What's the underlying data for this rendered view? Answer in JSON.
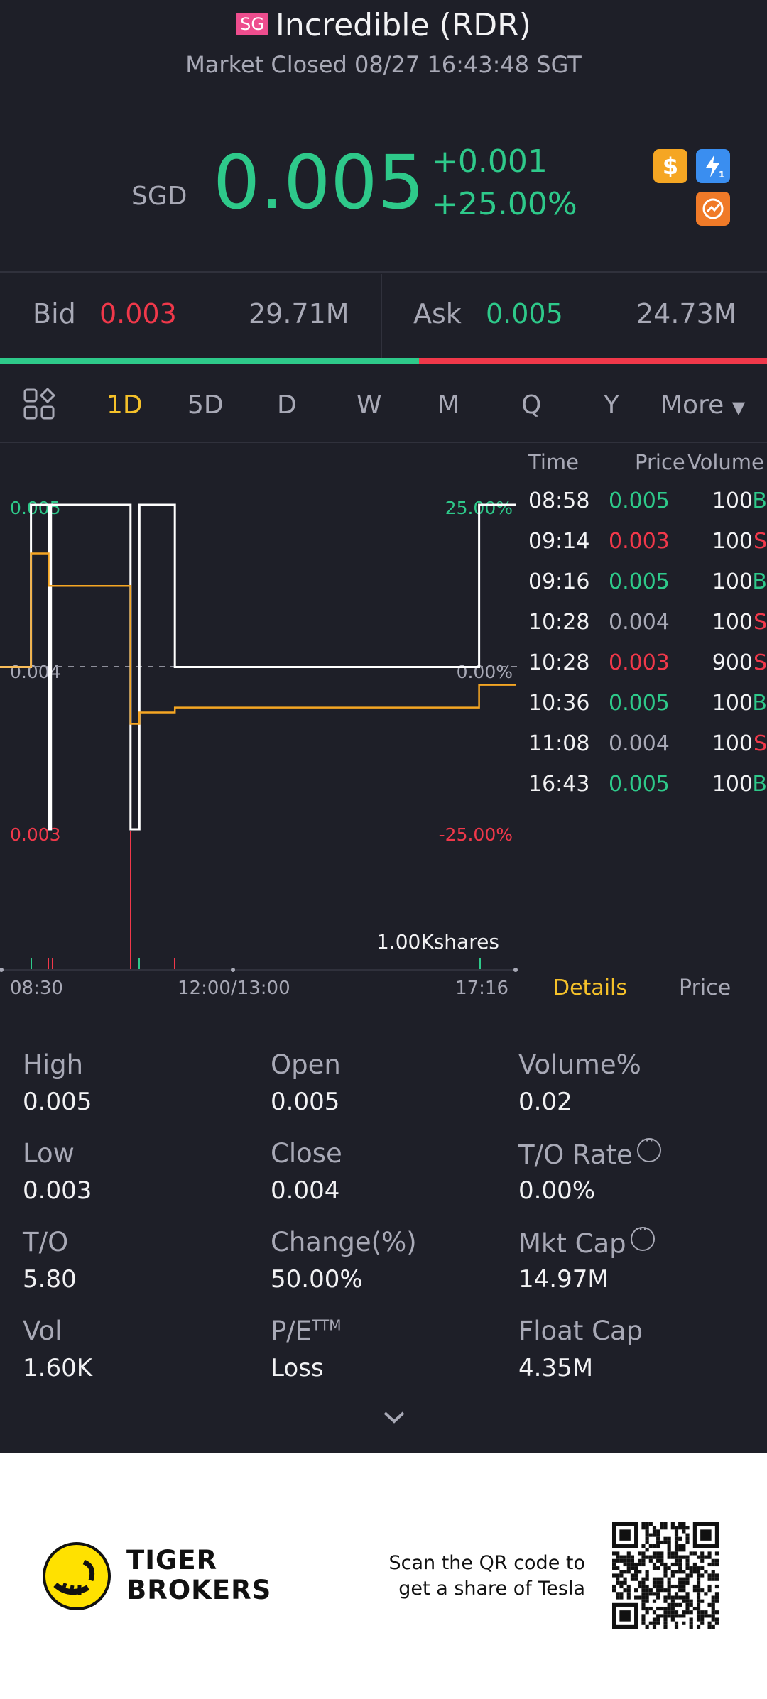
{
  "header": {
    "market_badge": "SG",
    "title": "Incredible (RDR)",
    "status": "Market Closed 08/27 16:43:48 SGT"
  },
  "quote": {
    "currency": "SGD",
    "price": "0.005",
    "change": "+0.001",
    "change_pct": "+25.00%",
    "up_color": "#2ec98a",
    "down_color": "#f0384a"
  },
  "icons": [
    "dollar-icon",
    "lightning-icon",
    "share-icon"
  ],
  "bid_ask": {
    "bid_label": "Bid",
    "bid_price": "0.003",
    "bid_volume": "29.71M",
    "ask_label": "Ask",
    "ask_price": "0.005",
    "ask_volume": "24.73M",
    "bid_share": 0.546
  },
  "tabs": [
    "1D",
    "5D",
    "D",
    "W",
    "M",
    "Q",
    "Y",
    "More"
  ],
  "active_tab": "1D",
  "chart": {
    "y_left_labels": [
      "0.005",
      "0.004",
      "0.003"
    ],
    "y_right_labels": [
      "25.00%",
      "0.00%",
      "-25.00%"
    ],
    "x_labels": [
      "08:30",
      "12:00/13:00",
      "17:16"
    ],
    "volume_label": "1.00Kshares"
  },
  "chart_data": {
    "type": "line",
    "title": "",
    "ylim": [
      0.003,
      0.005
    ],
    "xlabel": "",
    "ylabel": "",
    "x": [
      "08:30",
      "08:58",
      "09:14",
      "09:16",
      "10:28",
      "10:36",
      "11:08",
      "16:43",
      "17:16"
    ],
    "series": [
      {
        "name": "",
        "values": [
          0.004,
          0.005,
          0.003,
          0.005,
          0.003,
          0.005,
          0.004,
          0.005,
          0.005
        ]
      },
      {
        "name": "",
        "values": [
          0.004,
          0.0047,
          0.0045,
          0.0045,
          0.00365,
          0.00372,
          0.00375,
          0.00389,
          0.00389
        ]
      }
    ]
  },
  "trades": {
    "headers": [
      "Time",
      "Price",
      "Volume"
    ],
    "rows": [
      {
        "time": "08:58",
        "price": "0.005",
        "volume": "100",
        "side": "B",
        "dir": "up"
      },
      {
        "time": "09:14",
        "price": "0.003",
        "volume": "100",
        "side": "S",
        "dir": "down"
      },
      {
        "time": "09:16",
        "price": "0.005",
        "volume": "100",
        "side": "B",
        "dir": "up"
      },
      {
        "time": "10:28",
        "price": "0.004",
        "volume": "100",
        "side": "S",
        "dir": "flat"
      },
      {
        "time": "10:28",
        "price": "0.003",
        "volume": "900",
        "side": "S",
        "dir": "down"
      },
      {
        "time": "10:36",
        "price": "0.005",
        "volume": "100",
        "side": "B",
        "dir": "up"
      },
      {
        "time": "11:08",
        "price": "0.004",
        "volume": "100",
        "side": "S",
        "dir": "flat"
      },
      {
        "time": "16:43",
        "price": "0.005",
        "volume": "100",
        "side": "B",
        "dir": "up"
      }
    ]
  },
  "side_tabs": {
    "details": "Details",
    "price": "Price"
  },
  "stats": [
    {
      "label": "High",
      "value": "0.005"
    },
    {
      "label": "Open",
      "value": "0.005"
    },
    {
      "label": "Volume%",
      "value": "0.02"
    },
    {
      "label": "Low",
      "value": "0.003"
    },
    {
      "label": "Close",
      "value": "0.004"
    },
    {
      "label": "T/O Rate",
      "value": "0.00%"
    },
    {
      "label": "T/O",
      "value": "5.80"
    },
    {
      "label": "Change(%)",
      "value": "50.00%"
    },
    {
      "label": "Mkt Cap",
      "value": "14.97M"
    },
    {
      "label": "Vol",
      "value": "1.60K"
    },
    {
      "label": "P/E",
      "value": "Loss"
    },
    {
      "label": "Float Cap",
      "value": "4.35M"
    }
  ],
  "pe_superscript": "TTM",
  "footer": {
    "brand_line1": "TIGER",
    "brand_line2": "BROKERS",
    "scan_line1": "Scan the QR code to",
    "scan_line2": "get a share of Tesla"
  }
}
